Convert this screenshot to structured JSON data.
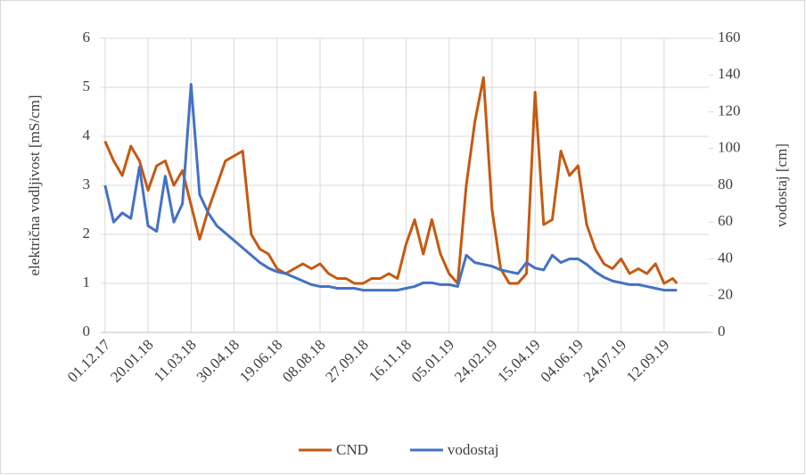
{
  "chart_data": {
    "type": "line",
    "y_label": "električna vodljivost [mS/cm]",
    "y2_label": "vodostaj [cm]",
    "x": [
      "01.12.17",
      "11.12.17",
      "21.12.17",
      "31.12.17",
      "10.01.18",
      "20.01.18",
      "30.01.18",
      "09.02.18",
      "19.02.18",
      "01.03.18",
      "11.03.18",
      "21.03.18",
      "31.03.18",
      "10.04.18",
      "20.04.18",
      "30.04.18",
      "10.05.18",
      "20.05.18",
      "30.05.18",
      "09.06.18",
      "19.06.18",
      "29.06.18",
      "09.07.18",
      "19.07.18",
      "29.07.18",
      "08.08.18",
      "18.08.18",
      "28.08.18",
      "07.09.18",
      "17.09.18",
      "27.09.18",
      "07.10.18",
      "17.10.18",
      "27.10.18",
      "06.11.18",
      "16.11.18",
      "26.11.18",
      "06.12.18",
      "16.12.18",
      "26.12.18",
      "05.01.19",
      "15.01.19",
      "25.01.19",
      "04.02.19",
      "14.02.19",
      "24.02.19",
      "06.03.19",
      "16.03.19",
      "26.03.19",
      "05.04.19",
      "15.04.19",
      "25.04.19",
      "05.05.19",
      "15.05.19",
      "25.05.19",
      "04.06.19",
      "14.06.19",
      "24.06.19",
      "04.07.19",
      "14.07.19",
      "24.07.19",
      "03.08.19",
      "13.08.19",
      "23.08.19",
      "02.09.19",
      "12.09.19",
      "22.09.19",
      "27.09.19"
    ],
    "series": [
      {
        "name": "CND",
        "color": "#c55a11",
        "axis": "y",
        "values": [
          3.9,
          3.5,
          3.2,
          3.8,
          3.5,
          2.9,
          3.4,
          3.5,
          3.0,
          3.3,
          2.6,
          1.9,
          2.5,
          3.0,
          3.5,
          3.6,
          3.7,
          2.0,
          1.7,
          1.6,
          1.3,
          1.2,
          1.3,
          1.4,
          1.3,
          1.4,
          1.2,
          1.1,
          1.1,
          1.0,
          1.0,
          1.1,
          1.1,
          1.2,
          1.1,
          1.8,
          2.3,
          1.6,
          2.3,
          1.6,
          1.2,
          1.0,
          3.0,
          4.3,
          5.2,
          2.5,
          1.3,
          1.0,
          1.0,
          1.2,
          4.9,
          2.2,
          2.3,
          3.7,
          3.2,
          3.4,
          2.2,
          1.7,
          1.4,
          1.3,
          1.5,
          1.2,
          1.3,
          1.2,
          1.4,
          1.0,
          1.1,
          1.0
        ]
      },
      {
        "name": "vodostaj",
        "color": "#4472c4",
        "axis": "y2",
        "values": [
          80,
          60,
          65,
          62,
          90,
          58,
          55,
          85,
          60,
          70,
          135,
          75,
          65,
          58,
          54,
          50,
          46,
          42,
          38,
          35,
          33,
          32,
          30,
          28,
          26,
          25,
          25,
          24,
          24,
          24,
          23,
          23,
          23,
          23,
          23,
          24,
          25,
          27,
          27,
          26,
          26,
          25,
          42,
          38,
          37,
          36,
          34,
          33,
          32,
          38,
          35,
          34,
          42,
          38,
          40,
          40,
          37,
          33,
          30,
          28,
          27,
          26,
          26,
          25,
          24,
          23,
          23,
          23
        ]
      }
    ],
    "xlim": [
      "26.11.17",
      "03.11.19"
    ],
    "xticks": [
      "01.12.17",
      "20.01.18",
      "11.03.18",
      "30.04.18",
      "19.06.18",
      "08.08.18",
      "27.09.18",
      "16.11.18",
      "05.01.19",
      "24.02.19",
      "15.04.19",
      "04.06.19",
      "24.07.19",
      "12.09.19"
    ],
    "ylim": [
      0,
      6
    ],
    "yticks": [
      0,
      1,
      2,
      3,
      4,
      5,
      6
    ],
    "y2lim": [
      0,
      160
    ],
    "y2ticks": [
      0,
      20,
      40,
      60,
      80,
      100,
      120,
      140,
      160
    ],
    "grid": true,
    "legend": "bottom"
  }
}
